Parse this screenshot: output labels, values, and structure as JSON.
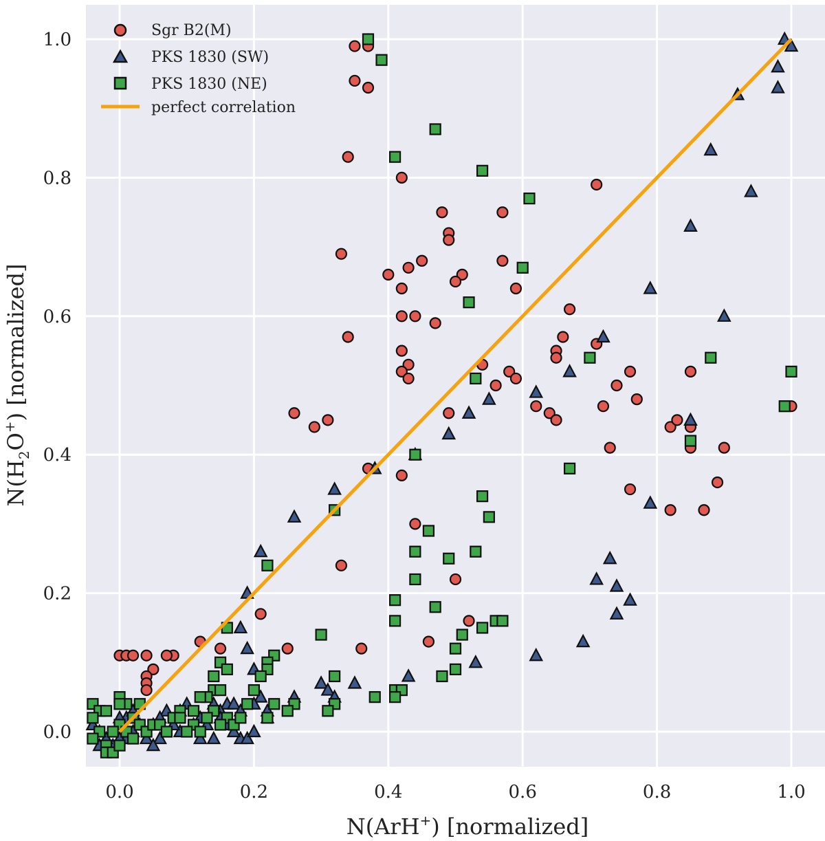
{
  "chart_data": {
    "type": "scatter",
    "title": "",
    "xlabel_main": "N(ArH",
    "xlabel_sup": "+",
    "xlabel_tail": ") [normalized]",
    "ylabel_main": "N(H",
    "ylabel_sub": "2",
    "ylabel_mid": "O",
    "ylabel_sup": "+",
    "ylabel_tail": ") [normalized]",
    "xlim": [
      -0.05,
      1.05
    ],
    "ylim": [
      -0.05,
      1.05
    ],
    "xticks": [
      0.0,
      0.2,
      0.4,
      0.6,
      0.8,
      1.0
    ],
    "yticks": [
      0.0,
      0.2,
      0.4,
      0.6,
      0.8,
      1.0
    ],
    "xtick_labels": [
      "0.0",
      "0.2",
      "0.4",
      "0.6",
      "0.8",
      "1.0"
    ],
    "ytick_labels": [
      "0.0",
      "0.2",
      "0.4",
      "0.6",
      "0.8",
      "1.0"
    ],
    "grid": true,
    "legend_position": "top-left",
    "series": [
      {
        "name": "Sgr B2(M)",
        "marker": "circle",
        "color": "#e05a52",
        "points": [
          [
            0.35,
            0.99
          ],
          [
            0.37,
            1.0
          ],
          [
            0.37,
            0.99
          ],
          [
            0.35,
            0.94
          ],
          [
            0.37,
            0.93
          ],
          [
            0.34,
            0.83
          ],
          [
            0.42,
            0.8
          ],
          [
            0.48,
            0.75
          ],
          [
            0.57,
            0.75
          ],
          [
            0.49,
            0.72
          ],
          [
            0.49,
            0.71
          ],
          [
            0.33,
            0.69
          ],
          [
            0.57,
            0.68
          ],
          [
            0.45,
            0.68
          ],
          [
            0.43,
            0.67
          ],
          [
            0.4,
            0.66
          ],
          [
            0.51,
            0.66
          ],
          [
            0.5,
            0.65
          ],
          [
            0.42,
            0.64
          ],
          [
            0.59,
            0.64
          ],
          [
            0.71,
            0.79
          ],
          [
            0.42,
            0.6
          ],
          [
            0.44,
            0.6
          ],
          [
            0.47,
            0.59
          ],
          [
            0.67,
            0.61
          ],
          [
            0.34,
            0.57
          ],
          [
            0.66,
            0.57
          ],
          [
            0.71,
            0.56
          ],
          [
            0.42,
            0.55
          ],
          [
            0.43,
            0.53
          ],
          [
            0.54,
            0.53
          ],
          [
            0.65,
            0.55
          ],
          [
            0.65,
            0.54
          ],
          [
            0.42,
            0.52
          ],
          [
            0.43,
            0.51
          ],
          [
            0.58,
            0.52
          ],
          [
            0.59,
            0.51
          ],
          [
            0.56,
            0.5
          ],
          [
            0.76,
            0.52
          ],
          [
            0.85,
            0.52
          ],
          [
            0.74,
            0.5
          ],
          [
            0.77,
            0.48
          ],
          [
            0.26,
            0.46
          ],
          [
            0.31,
            0.45
          ],
          [
            0.29,
            0.44
          ],
          [
            0.49,
            0.46
          ],
          [
            0.62,
            0.47
          ],
          [
            0.64,
            0.46
          ],
          [
            0.65,
            0.45
          ],
          [
            0.72,
            0.47
          ],
          [
            0.82,
            0.44
          ],
          [
            0.83,
            0.45
          ],
          [
            0.85,
            0.44
          ],
          [
            0.85,
            0.41
          ],
          [
            0.9,
            0.41
          ],
          [
            1.0,
            0.47
          ],
          [
            0.73,
            0.41
          ],
          [
            0.37,
            0.38
          ],
          [
            0.42,
            0.37
          ],
          [
            0.76,
            0.35
          ],
          [
            0.82,
            0.32
          ],
          [
            0.87,
            0.32
          ],
          [
            0.89,
            0.36
          ],
          [
            0.44,
            0.3
          ],
          [
            0.33,
            0.24
          ],
          [
            0.5,
            0.22
          ],
          [
            0.21,
            0.17
          ],
          [
            0.52,
            0.16
          ],
          [
            0.46,
            0.13
          ],
          [
            0.36,
            0.12
          ],
          [
            0.12,
            0.13
          ],
          [
            0.15,
            0.12
          ],
          [
            0.25,
            0.12
          ],
          [
            0.0,
            0.11
          ],
          [
            0.01,
            0.11
          ],
          [
            0.02,
            0.11
          ],
          [
            0.04,
            0.11
          ],
          [
            0.08,
            0.11
          ],
          [
            0.07,
            0.11
          ],
          [
            0.05,
            0.09
          ],
          [
            0.04,
            0.08
          ],
          [
            0.04,
            0.07
          ],
          [
            0.04,
            0.06
          ]
        ]
      },
      {
        "name": "PKS 1830 (SW)",
        "marker": "triangle",
        "color": "#3e5a8c",
        "points": [
          [
            0.99,
            1.0
          ],
          [
            1.0,
            0.99
          ],
          [
            0.98,
            0.96
          ],
          [
            0.98,
            0.93
          ],
          [
            0.92,
            0.92
          ],
          [
            0.88,
            0.84
          ],
          [
            0.94,
            0.78
          ],
          [
            0.85,
            0.73
          ],
          [
            0.79,
            0.64
          ],
          [
            0.9,
            0.6
          ],
          [
            0.72,
            0.57
          ],
          [
            0.67,
            0.52
          ],
          [
            0.62,
            0.49
          ],
          [
            0.55,
            0.48
          ],
          [
            0.52,
            0.46
          ],
          [
            0.85,
            0.45
          ],
          [
            0.49,
            0.43
          ],
          [
            0.44,
            0.4
          ],
          [
            0.38,
            0.38
          ],
          [
            0.32,
            0.35
          ],
          [
            0.79,
            0.33
          ],
          [
            0.26,
            0.31
          ],
          [
            0.21,
            0.26
          ],
          [
            0.73,
            0.25
          ],
          [
            0.71,
            0.22
          ],
          [
            0.74,
            0.21
          ],
          [
            0.76,
            0.19
          ],
          [
            0.74,
            0.17
          ],
          [
            0.19,
            0.2
          ],
          [
            0.18,
            0.15
          ],
          [
            0.19,
            0.12
          ],
          [
            0.69,
            0.13
          ],
          [
            0.62,
            0.11
          ],
          [
            0.53,
            0.1
          ],
          [
            0.2,
            0.09
          ],
          [
            0.43,
            0.08
          ],
          [
            0.35,
            0.07
          ],
          [
            0.3,
            0.07
          ],
          [
            0.31,
            0.06
          ],
          [
            0.32,
            0.05
          ],
          [
            0.26,
            0.05
          ],
          [
            0.21,
            0.05
          ],
          [
            0.22,
            0.02
          ],
          [
            0.16,
            0.04
          ],
          [
            0.15,
            0.03
          ],
          [
            0.14,
            0.04
          ],
          [
            0.17,
            0.04
          ],
          [
            0.18,
            0.03
          ],
          [
            0.2,
            0.04
          ],
          [
            0.12,
            0.02
          ],
          [
            0.13,
            0.01
          ],
          [
            0.1,
            0.04
          ],
          [
            0.09,
            0.03
          ],
          [
            0.07,
            0.03
          ],
          [
            0.06,
            0.02
          ],
          [
            0.05,
            0.01
          ],
          [
            0.03,
            0.01
          ],
          [
            0.02,
            0.0
          ],
          [
            0.01,
            -0.01
          ],
          [
            0.0,
            -0.01
          ],
          [
            -0.01,
            -0.02
          ],
          [
            -0.02,
            -0.01
          ],
          [
            -0.03,
            0.0
          ],
          [
            -0.04,
            0.01
          ],
          [
            -0.03,
            -0.02
          ],
          [
            0.04,
            -0.01
          ],
          [
            0.06,
            -0.01
          ],
          [
            0.09,
            0.0
          ],
          [
            0.11,
            0.01
          ],
          [
            0.12,
            -0.01
          ],
          [
            0.14,
            -0.01
          ],
          [
            0.18,
            -0.01
          ],
          [
            0.19,
            -0.01
          ],
          [
            0.2,
            0.0
          ],
          [
            0.01,
            0.02
          ],
          [
            0.02,
            0.03
          ],
          [
            0.08,
            0.01
          ],
          [
            0.15,
            0.02
          ],
          [
            0.16,
            0.01
          ],
          [
            0.17,
            0.0
          ],
          [
            0.22,
            0.03
          ],
          [
            0.05,
            -0.02
          ],
          [
            0.0,
            0.02
          ]
        ]
      },
      {
        "name": "PKS 1830 (NE)",
        "marker": "square",
        "color": "#3fa64a",
        "points": [
          [
            0.37,
            1.0
          ],
          [
            0.39,
            0.97
          ],
          [
            0.47,
            0.87
          ],
          [
            0.41,
            0.83
          ],
          [
            0.54,
            0.81
          ],
          [
            0.61,
            0.77
          ],
          [
            0.6,
            0.67
          ],
          [
            0.52,
            0.62
          ],
          [
            0.7,
            0.54
          ],
          [
            0.88,
            0.54
          ],
          [
            1.0,
            0.52
          ],
          [
            0.53,
            0.51
          ],
          [
            0.99,
            0.47
          ],
          [
            0.85,
            0.42
          ],
          [
            0.44,
            0.4
          ],
          [
            0.67,
            0.38
          ],
          [
            0.54,
            0.34
          ],
          [
            0.32,
            0.32
          ],
          [
            0.55,
            0.31
          ],
          [
            0.46,
            0.29
          ],
          [
            0.53,
            0.26
          ],
          [
            0.44,
            0.26
          ],
          [
            0.49,
            0.25
          ],
          [
            0.44,
            0.22
          ],
          [
            0.22,
            0.24
          ],
          [
            0.41,
            0.19
          ],
          [
            0.47,
            0.18
          ],
          [
            0.56,
            0.16
          ],
          [
            0.57,
            0.16
          ],
          [
            0.41,
            0.16
          ],
          [
            0.54,
            0.15
          ],
          [
            0.16,
            0.15
          ],
          [
            0.51,
            0.14
          ],
          [
            0.3,
            0.14
          ],
          [
            0.5,
            0.12
          ],
          [
            0.23,
            0.11
          ],
          [
            0.22,
            0.1
          ],
          [
            0.22,
            0.09
          ],
          [
            0.15,
            0.1
          ],
          [
            0.16,
            0.09
          ],
          [
            0.21,
            0.08
          ],
          [
            0.14,
            0.08
          ],
          [
            0.5,
            0.09
          ],
          [
            0.32,
            0.08
          ],
          [
            0.48,
            0.08
          ],
          [
            0.14,
            0.06
          ],
          [
            0.15,
            0.06
          ],
          [
            0.2,
            0.06
          ],
          [
            0.41,
            0.06
          ],
          [
            0.42,
            0.06
          ],
          [
            0.38,
            0.05
          ],
          [
            0.41,
            0.05
          ],
          [
            0.13,
            0.05
          ],
          [
            0.12,
            0.05
          ],
          [
            0.26,
            0.04
          ],
          [
            0.23,
            0.04
          ],
          [
            0.32,
            0.04
          ],
          [
            0.31,
            0.03
          ],
          [
            0.25,
            0.03
          ],
          [
            0.14,
            0.03
          ],
          [
            0.11,
            0.03
          ],
          [
            0.09,
            0.03
          ],
          [
            0.19,
            0.04
          ],
          [
            0.22,
            0.02
          ],
          [
            0.16,
            0.02
          ],
          [
            0.13,
            0.02
          ],
          [
            -0.04,
            0.04
          ],
          [
            -0.03,
            0.03
          ],
          [
            -0.02,
            0.03
          ],
          [
            0.0,
            0.05
          ],
          [
            0.01,
            0.04
          ],
          [
            0.0,
            0.04
          ],
          [
            0.03,
            0.04
          ],
          [
            0.02,
            0.02
          ],
          [
            -0.04,
            0.02
          ],
          [
            -0.03,
            0.0
          ],
          [
            -0.02,
            -0.02
          ],
          [
            -0.02,
            -0.03
          ],
          [
            -0.01,
            -0.03
          ],
          [
            -0.04,
            -0.01
          ],
          [
            0.0,
            0.01
          ],
          [
            0.01,
            0.0
          ],
          [
            0.03,
            0.01
          ],
          [
            0.04,
            0.0
          ],
          [
            0.05,
            0.01
          ],
          [
            0.06,
            0.01
          ],
          [
            0.07,
            0.0
          ],
          [
            0.08,
            0.02
          ],
          [
            0.09,
            0.02
          ],
          [
            0.11,
            0.01
          ],
          [
            0.15,
            0.01
          ],
          [
            0.17,
            0.01
          ],
          [
            0.18,
            0.02
          ],
          [
            0.12,
            0.0
          ],
          [
            0.1,
            0.0
          ],
          [
            -0.01,
            0.0
          ],
          [
            0.02,
            -0.01
          ],
          [
            0.0,
            -0.02
          ]
        ]
      },
      {
        "name": "perfect correlation",
        "marker": "line",
        "color": "#f5a30f",
        "points": [
          [
            0.0,
            0.0
          ],
          [
            1.0,
            1.0
          ]
        ]
      }
    ]
  }
}
